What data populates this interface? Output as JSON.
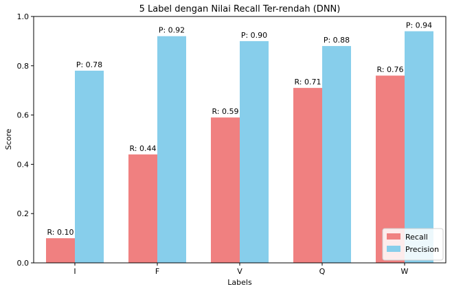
{
  "chart_data": {
    "type": "bar",
    "title": "5 Label dengan Nilai Recall Ter-rendah (DNN)",
    "xlabel": "Labels",
    "ylabel": "Score",
    "ylim": [
      0,
      1.0
    ],
    "yticks": [
      "0.0",
      "0.2",
      "0.4",
      "0.6",
      "0.8",
      "1.0"
    ],
    "categories": [
      "I",
      "F",
      "V",
      "Q",
      "W"
    ],
    "series": [
      {
        "name": "Recall",
        "color": "#f08080",
        "values": [
          0.1,
          0.44,
          0.59,
          0.71,
          0.76
        ],
        "labels": [
          "R: 0.10",
          "R: 0.44",
          "R: 0.59",
          "R: 0.71",
          "R: 0.76"
        ]
      },
      {
        "name": "Precision",
        "color": "#87ceeb",
        "values": [
          0.78,
          0.92,
          0.9,
          0.88,
          0.94
        ],
        "labels": [
          "P: 0.78",
          "P: 0.92",
          "P: 0.90",
          "P: 0.88",
          "P: 0.94"
        ]
      }
    ],
    "grid": false,
    "legend_position": "bottom-right"
  }
}
